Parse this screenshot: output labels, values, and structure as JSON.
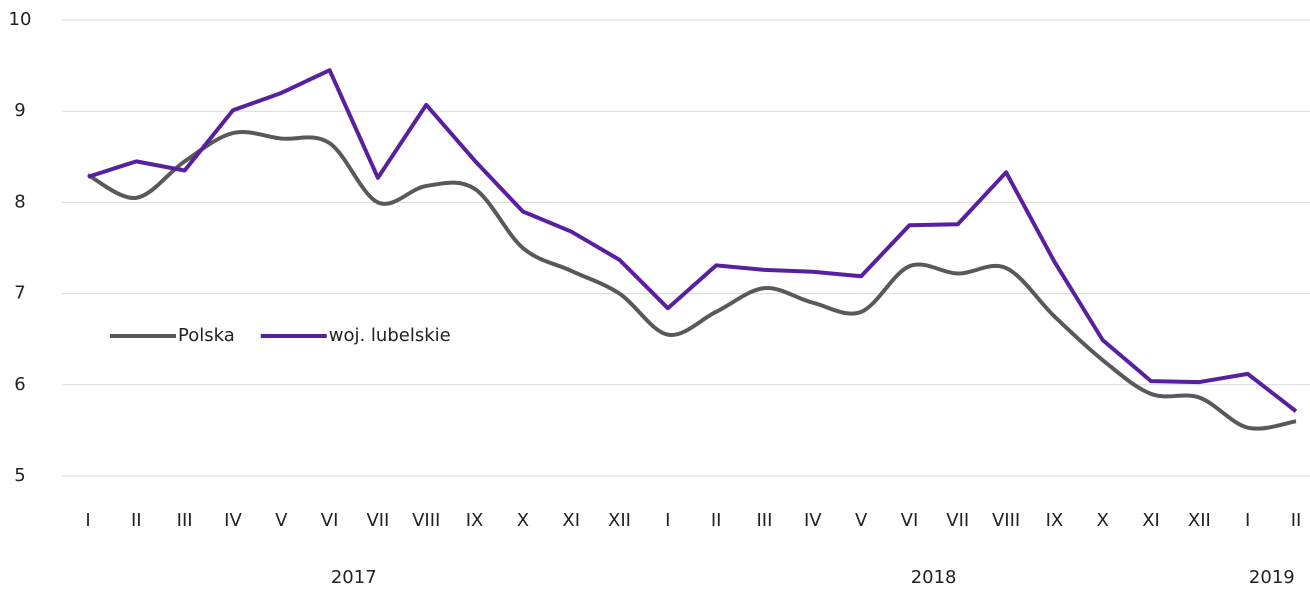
{
  "chart_data": {
    "type": "line",
    "categories": [
      "I",
      "II",
      "III",
      "IV",
      "V",
      "VI",
      "VII",
      "VIII",
      "IX",
      "X",
      "XI",
      "XII",
      "I",
      "II",
      "III",
      "IV",
      "V",
      "VI",
      "VII",
      "VIII",
      "IX",
      "X",
      "XI",
      "XII",
      "I",
      "II"
    ],
    "category_groups": [
      {
        "label": "2017",
        "size": 12
      },
      {
        "label": "2018",
        "size": 12
      },
      {
        "label": "2019",
        "size": 2
      }
    ],
    "series": [
      {
        "name": "Polska",
        "color": "#595959",
        "smooth": true,
        "values": [
          8.3,
          8.05,
          8.45,
          8.76,
          8.7,
          8.65,
          8.0,
          8.18,
          8.15,
          7.5,
          7.25,
          7.0,
          6.55,
          6.8,
          7.06,
          6.9,
          6.8,
          7.3,
          7.22,
          7.28,
          6.75,
          6.27,
          5.9,
          5.86,
          5.53,
          5.6
        ]
      },
      {
        "name": "woj. lubelskie",
        "color": "#58209f",
        "smooth": false,
        "values": [
          8.28,
          8.45,
          8.35,
          9.01,
          9.2,
          9.45,
          8.27,
          9.07,
          8.46,
          7.9,
          7.68,
          7.37,
          6.84,
          7.31,
          7.26,
          7.24,
          7.19,
          7.75,
          7.76,
          8.33,
          7.35,
          6.49,
          6.04,
          6.03,
          6.12,
          5.71
        ]
      }
    ],
    "ylim": [
      5,
      10
    ],
    "yticks": [
      5,
      6,
      7,
      8,
      9,
      10
    ],
    "grid": true,
    "legend": "center-left"
  }
}
